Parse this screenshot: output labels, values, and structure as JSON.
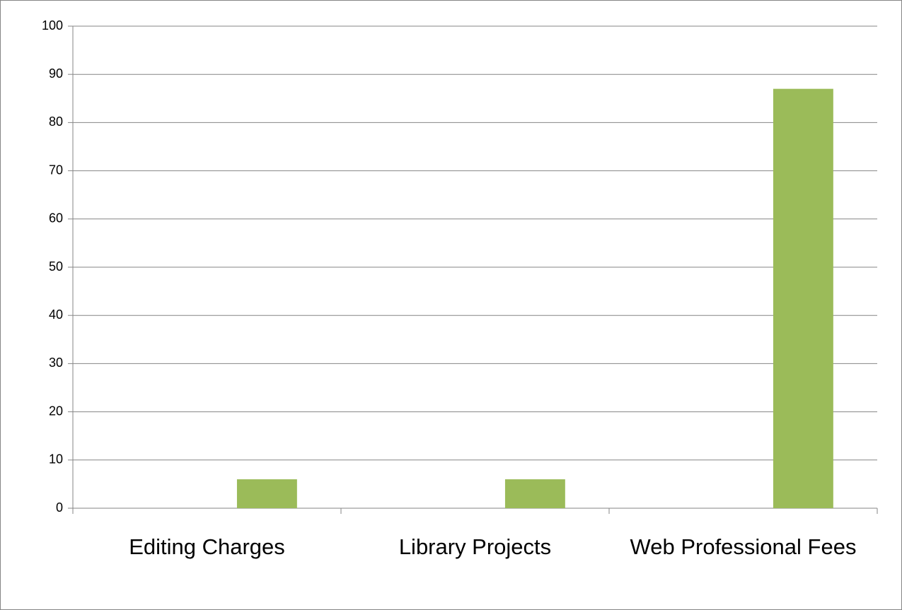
{
  "chart_data": {
    "type": "bar",
    "categories": [
      "Editing Charges",
      "Library Projects",
      "Web Professional Fees"
    ],
    "values": [
      6,
      6,
      87
    ],
    "color": "#9bbb59",
    "ylim": [
      0,
      100
    ],
    "yticks": [
      0,
      10,
      20,
      30,
      40,
      50,
      60,
      70,
      80,
      90,
      100
    ],
    "grid": true
  }
}
